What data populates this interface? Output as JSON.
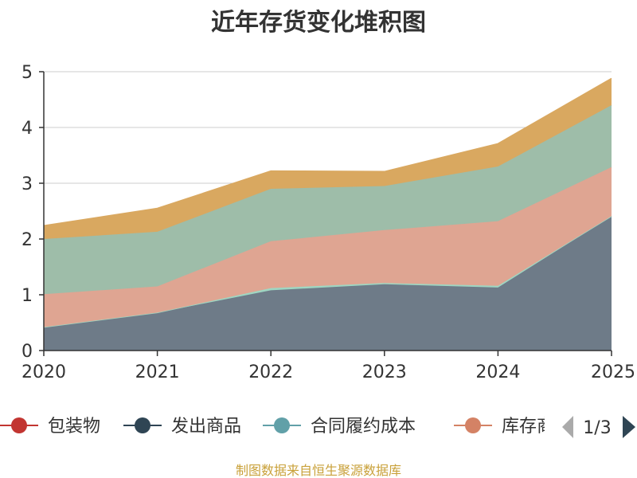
{
  "chart_data": {
    "type": "area",
    "title": "近年存货变化堆积图",
    "ylabel": "",
    "x": [
      "2020",
      "2021",
      "2022",
      "2023",
      "2024",
      "2025"
    ],
    "ylim": [
      0,
      5
    ],
    "yticks": [
      "0",
      "1",
      "2",
      "3",
      "4",
      "5"
    ],
    "stacked": true,
    "grid": true,
    "series": [
      {
        "name": "发出商品",
        "color": "#6e7b88",
        "values": [
          0.42,
          0.68,
          1.08,
          1.19,
          1.13,
          2.41
        ]
      },
      {
        "name": "合同履约成本",
        "color": "#9fd6c2",
        "values": [
          0.0,
          0.0,
          0.04,
          0.02,
          0.03,
          0.0
        ]
      },
      {
        "name": "库存商品",
        "color": "#dfa592",
        "values": [
          0.59,
          0.47,
          0.84,
          0.95,
          1.16,
          0.88
        ]
      },
      {
        "name": "",
        "color": "#9ebda9",
        "values": [
          0.99,
          0.98,
          0.94,
          0.79,
          0.98,
          1.11
        ]
      },
      {
        "name": "",
        "color": "#d9a860",
        "values": [
          0.24,
          0.42,
          0.32,
          0.26,
          0.41,
          0.48
        ]
      }
    ]
  },
  "legend": {
    "items": [
      {
        "name": "包装物",
        "color": "#c23531"
      },
      {
        "name": "发出商品",
        "color": "#2f4554"
      },
      {
        "name": "合同履约成本",
        "color": "#61a0a8"
      },
      {
        "name": "库存商",
        "color": "#d48265"
      }
    ],
    "page": "1/3"
  },
  "source": "制图数据来自恒生聚源数据库"
}
